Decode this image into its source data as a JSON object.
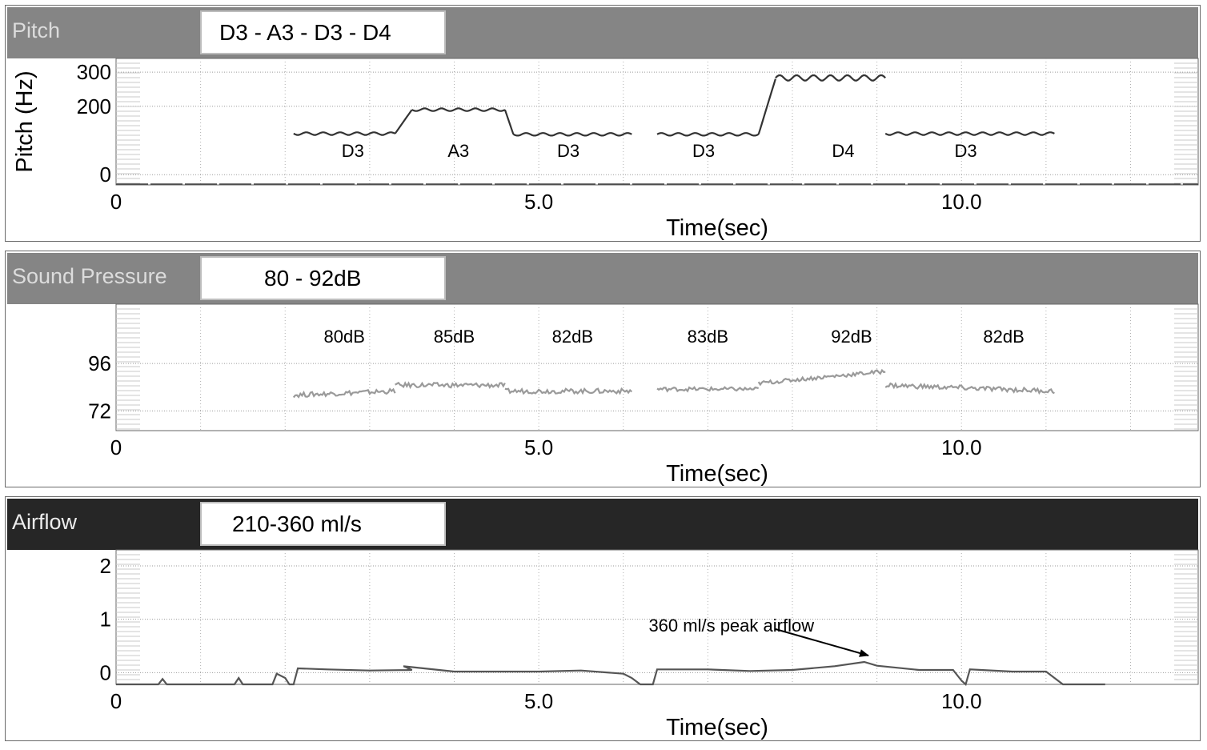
{
  "panels": {
    "pitch": {
      "title": "Pitch",
      "box": "D3 - A3 - D3 - D4"
    },
    "spl": {
      "title": "Sound Pressure",
      "box": "80 - 92dB"
    },
    "airflow": {
      "title": "Airflow",
      "box": "210-360  ml/s"
    }
  },
  "colors": {
    "band_gray": "#858585",
    "band_dark": "#262626",
    "pitch_trace": "#333333",
    "spl_trace": "#9a9a9a",
    "airflow_trace": "#555555",
    "grid": "#9a9a9a"
  },
  "chart_data": [
    {
      "type": "line",
      "xlabel": "Time(sec)",
      "ylabel": "Pitch (Hz)",
      "xlim": [
        0,
        12.8
      ],
      "x_ticks": [
        {
          "v": 0,
          "label": "0"
        },
        {
          "v": 5,
          "label": "5.0"
        },
        {
          "v": 10,
          "label": "10.0"
        }
      ],
      "ylim": [
        -30,
        340
      ],
      "y_ticks": [
        {
          "v": 300,
          "label": "300"
        },
        {
          "v": 200,
          "label": "200"
        },
        {
          "v": 0,
          "label": "0"
        }
      ],
      "grid": true,
      "series": [
        {
          "segments": [
            {
              "x0": 2.1,
              "x1": 3.3,
              "y": 120,
              "wobble": 4
            },
            {
              "x0": 3.3,
              "x1": 3.5,
              "ramp": [
                120,
                190
              ]
            },
            {
              "x0": 3.5,
              "x1": 4.6,
              "y": 190,
              "wobble": 4
            },
            {
              "x0": 4.6,
              "x1": 4.7,
              "ramp": [
                190,
                118
              ]
            },
            {
              "x0": 4.7,
              "x1": 6.1,
              "y": 118,
              "wobble": 4
            },
            {
              "x0": 6.4,
              "x1": 7.6,
              "y": 118,
              "wobble": 4
            },
            {
              "x0": 7.6,
              "x1": 7.8,
              "ramp": [
                118,
                280
              ]
            },
            {
              "x0": 7.8,
              "x1": 9.1,
              "y": 283,
              "wobble": 8
            },
            {
              "x0": 9.1,
              "x1": 11.1,
              "y": 120,
              "wobble": 4
            }
          ]
        }
      ],
      "annotations": [
        {
          "x": 2.8,
          "label": "D3"
        },
        {
          "x": 4.05,
          "label": "A3"
        },
        {
          "x": 5.35,
          "label": "D3"
        },
        {
          "x": 6.95,
          "label": "D3"
        },
        {
          "x": 8.6,
          "label": "D4"
        },
        {
          "x": 10.05,
          "label": "D3"
        }
      ]
    },
    {
      "type": "line",
      "xlabel": "Time(sec)",
      "xlim": [
        0,
        12.8
      ],
      "x_ticks": [
        {
          "v": 0,
          "label": "0"
        },
        {
          "v": 5,
          "label": "5.0"
        },
        {
          "v": 10,
          "label": "10.0"
        }
      ],
      "ylim": [
        62,
        126
      ],
      "y_ticks": [
        {
          "v": 96,
          "label": "96"
        },
        {
          "v": 72,
          "label": "72"
        }
      ],
      "grid": true,
      "series": [
        {
          "segments": [
            {
              "x0": 2.1,
              "x1": 3.3,
              "ramp": [
                80,
                82
              ],
              "noise": 1.2
            },
            {
              "x0": 3.3,
              "x1": 4.6,
              "y": 85,
              "noise": 1.2
            },
            {
              "x0": 4.6,
              "x1": 6.1,
              "y": 82,
              "noise": 1.2
            },
            {
              "x0": 6.4,
              "x1": 7.6,
              "y": 83,
              "noise": 1.0
            },
            {
              "x0": 7.6,
              "x1": 9.1,
              "ramp": [
                86,
                92
              ],
              "noise": 1.0
            },
            {
              "x0": 9.1,
              "x1": 11.1,
              "ramp": [
                85,
                82
              ],
              "noise": 1.2
            }
          ]
        }
      ],
      "annotations": [
        {
          "x": 2.7,
          "label": "80dB"
        },
        {
          "x": 4.0,
          "label": "85dB"
        },
        {
          "x": 5.4,
          "label": "82dB"
        },
        {
          "x": 7.0,
          "label": "83dB"
        },
        {
          "x": 8.7,
          "label": "92dB"
        },
        {
          "x": 10.5,
          "label": "82dB"
        }
      ]
    },
    {
      "type": "line",
      "xlabel": "Time(sec)",
      "xlim": [
        0,
        12.8
      ],
      "x_ticks": [
        {
          "v": 0,
          "label": "0"
        },
        {
          "v": 5,
          "label": "5.0"
        },
        {
          "v": 10,
          "label": "10.0"
        }
      ],
      "ylim": [
        -0.22,
        2.3
      ],
      "y_ticks": [
        {
          "v": 2,
          "label": "2"
        },
        {
          "v": 1,
          "label": "1"
        },
        {
          "v": 0,
          "label": "0"
        }
      ],
      "grid": true,
      "series": [
        {
          "points": [
            [
              0,
              -0.22
            ],
            [
              0.5,
              -0.22
            ],
            [
              0.55,
              -0.12
            ],
            [
              0.6,
              -0.22
            ],
            [
              1.4,
              -0.22
            ],
            [
              1.45,
              -0.1
            ],
            [
              1.5,
              -0.22
            ],
            [
              1.85,
              -0.22
            ],
            [
              1.9,
              -0.02
            ],
            [
              2.0,
              -0.1
            ],
            [
              2.05,
              -0.22
            ],
            [
              2.1,
              -0.22
            ],
            [
              2.15,
              0.08
            ],
            [
              2.5,
              0.06
            ],
            [
              3.0,
              0.04
            ],
            [
              3.5,
              0.05
            ],
            [
              3.4,
              0.12
            ],
            [
              4.0,
              0.02
            ],
            [
              4.5,
              0.02
            ],
            [
              5.0,
              0.02
            ],
            [
              5.5,
              0.04
            ],
            [
              6.0,
              -0.02
            ],
            [
              6.1,
              -0.1
            ],
            [
              6.2,
              -0.22
            ],
            [
              6.35,
              -0.22
            ],
            [
              6.4,
              0.06
            ],
            [
              7.0,
              0.06
            ],
            [
              7.5,
              0.03
            ],
            [
              8.0,
              0.05
            ],
            [
              8.5,
              0.12
            ],
            [
              8.85,
              0.2
            ],
            [
              9.0,
              0.13
            ],
            [
              9.5,
              0.05
            ],
            [
              9.9,
              0.05
            ],
            [
              10.0,
              -0.15
            ],
            [
              10.05,
              -0.22
            ],
            [
              10.1,
              0.06
            ],
            [
              10.6,
              0.02
            ],
            [
              11.0,
              0.02
            ],
            [
              11.1,
              -0.1
            ],
            [
              11.2,
              -0.22
            ],
            [
              11.7,
              -0.22
            ]
          ]
        }
      ],
      "annotations": [
        {
          "x": 6.3,
          "label": "360 ml/s peak airflow"
        }
      ]
    }
  ]
}
